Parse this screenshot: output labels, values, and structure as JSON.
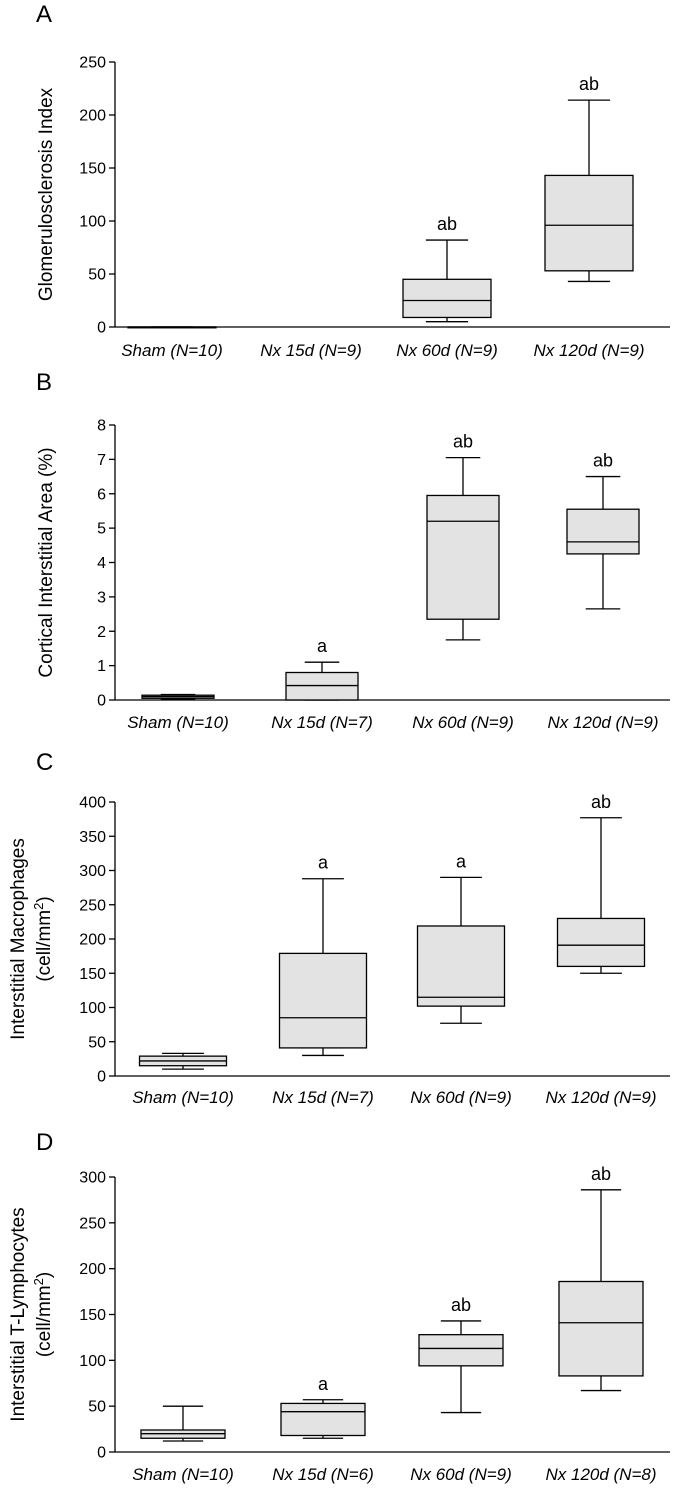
{
  "chart_data": [
    {
      "panel": "A",
      "type": "box",
      "ylabel": [
        "Glomerulosclerosis Index"
      ],
      "ylim": [
        0,
        250
      ],
      "yticks": [
        0,
        50,
        100,
        150,
        200,
        250
      ],
      "categories": [
        "Sham  (N=10)",
        "Nx 15d  (N=9)",
        "Nx 60d  (N=9)",
        "Nx 120d  (N=9)"
      ],
      "boxes": [
        {
          "min": 0,
          "q1": 0,
          "median": 0,
          "q3": 0,
          "max": 0,
          "label": ""
        },
        null,
        {
          "min": 5,
          "q1": 9,
          "median": 25,
          "q3": 45,
          "max": 82,
          "label": "ab"
        },
        {
          "min": 43,
          "q1": 53,
          "median": 96,
          "q3": 143,
          "max": 214,
          "label": "ab"
        }
      ]
    },
    {
      "panel": "B",
      "type": "box",
      "ylabel": [
        "Cortical Interstitial Area (%)"
      ],
      "ylim": [
        0,
        8
      ],
      "yticks": [
        0,
        1,
        2,
        3,
        4,
        5,
        6,
        7,
        8
      ],
      "categories": [
        "Sham  (N=10)",
        "Nx 15d  (N=7)",
        "Nx 60d  (N=9)",
        "Nx 120d  (N=9)"
      ],
      "boxes": [
        {
          "min": 0.03,
          "q1": 0.05,
          "median": 0.1,
          "q3": 0.14,
          "max": 0.16,
          "label": ""
        },
        {
          "min": 0,
          "q1": 0,
          "median": 0.42,
          "q3": 0.8,
          "max": 1.1,
          "label": "a"
        },
        {
          "min": 1.75,
          "q1": 2.35,
          "median": 5.2,
          "q3": 5.95,
          "max": 7.05,
          "label": "ab"
        },
        {
          "min": 2.65,
          "q1": 4.25,
          "median": 4.6,
          "q3": 5.55,
          "max": 6.5,
          "label": "ab"
        }
      ]
    },
    {
      "panel": "C",
      "type": "box",
      "ylabel": [
        "Interstitial Macrophages",
        "(cell/mm",
        "2",
        ")"
      ],
      "ylim": [
        0,
        400
      ],
      "yticks": [
        0,
        50,
        100,
        150,
        200,
        250,
        300,
        350,
        400
      ],
      "categories": [
        "Sham  (N=10)",
        "Nx 15d  (N=7)",
        "Nx 60d  (N=9)",
        "Nx 120d  (N=9)"
      ],
      "boxes": [
        {
          "min": 10,
          "q1": 15,
          "median": 22,
          "q3": 29,
          "max": 33,
          "label": ""
        },
        {
          "min": 30,
          "q1": 41,
          "median": 85,
          "q3": 179,
          "max": 288,
          "label": "a"
        },
        {
          "min": 77,
          "q1": 102,
          "median": 115,
          "q3": 219,
          "max": 290,
          "label": "a"
        },
        {
          "min": 150,
          "q1": 160,
          "median": 191,
          "q3": 230,
          "max": 377,
          "label": "ab"
        }
      ]
    },
    {
      "panel": "D",
      "type": "box",
      "ylabel": [
        "Interstitial T-Lymphocytes",
        "(cell/mm",
        "2",
        ")"
      ],
      "ylim": [
        0,
        300
      ],
      "yticks": [
        0,
        50,
        100,
        150,
        200,
        250,
        300
      ],
      "categories": [
        "Sham  (N=10)",
        "Nx 15d  (N=6)",
        "Nx 60d  (N=9)",
        "Nx 120d  (N=8)"
      ],
      "boxes": [
        {
          "min": 12,
          "q1": 15,
          "median": 20,
          "q3": 24,
          "max": 50,
          "label": ""
        },
        {
          "min": 15,
          "q1": 18,
          "median": 44,
          "q3": 53,
          "max": 57,
          "label": "a"
        },
        {
          "min": 43,
          "q1": 94,
          "median": 113,
          "q3": 128,
          "max": 143,
          "label": "ab"
        },
        {
          "min": 67,
          "q1": 83,
          "median": 141,
          "q3": 186,
          "max": 286,
          "label": "ab"
        }
      ]
    }
  ]
}
